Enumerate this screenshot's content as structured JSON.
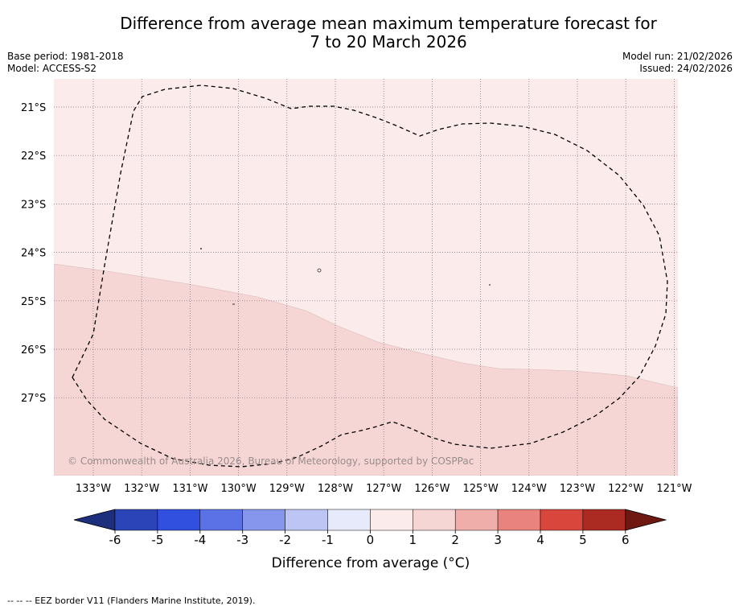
{
  "title": {
    "line1": "Difference from average mean maximum temperature forecast for",
    "line2": "7 to 20 March 2026"
  },
  "meta_left": {
    "base_period": "Base period: 1981-2018",
    "model": "Model: ACCESS-S2"
  },
  "meta_right": {
    "model_run": "Model run: 21/02/2026",
    "issued": "Issued: 24/02/2026"
  },
  "map": {
    "lat_labels": [
      "21°S",
      "22°S",
      "23°S",
      "24°S",
      "25°S",
      "26°S",
      "27°S"
    ],
    "lon_labels": [
      "133°W",
      "132°W",
      "131°W",
      "130°W",
      "129°W",
      "128°W",
      "127°W",
      "126°W",
      "125°W",
      "124°W",
      "123°W",
      "122°W",
      "121°W"
    ],
    "copyright": "© Commonwealth of Australia 2026, Bureau of Meteorology, supported by COSPPac",
    "zone_colors": {
      "zero_to_one": "#fbebea",
      "one_to_two": "#f5d6d5"
    }
  },
  "colorbar": {
    "ticks": [
      "-6",
      "-5",
      "-4",
      "-3",
      "-2",
      "-1",
      "0",
      "1",
      "2",
      "3",
      "4",
      "5",
      "6"
    ],
    "colors": [
      "#1d2f7c",
      "#2b45b8",
      "#3150e0",
      "#5b72e6",
      "#8696ec",
      "#bcc5f4",
      "#e7eafb",
      "#fbebea",
      "#f5d6d5",
      "#efaea9",
      "#e8847d",
      "#d9473c",
      "#ab2a21",
      "#6e1811"
    ],
    "title": "Difference from average (°C)"
  },
  "footnote": "--  --  -- EEZ border V11 (Flanders Marine Institute, 2019)."
}
